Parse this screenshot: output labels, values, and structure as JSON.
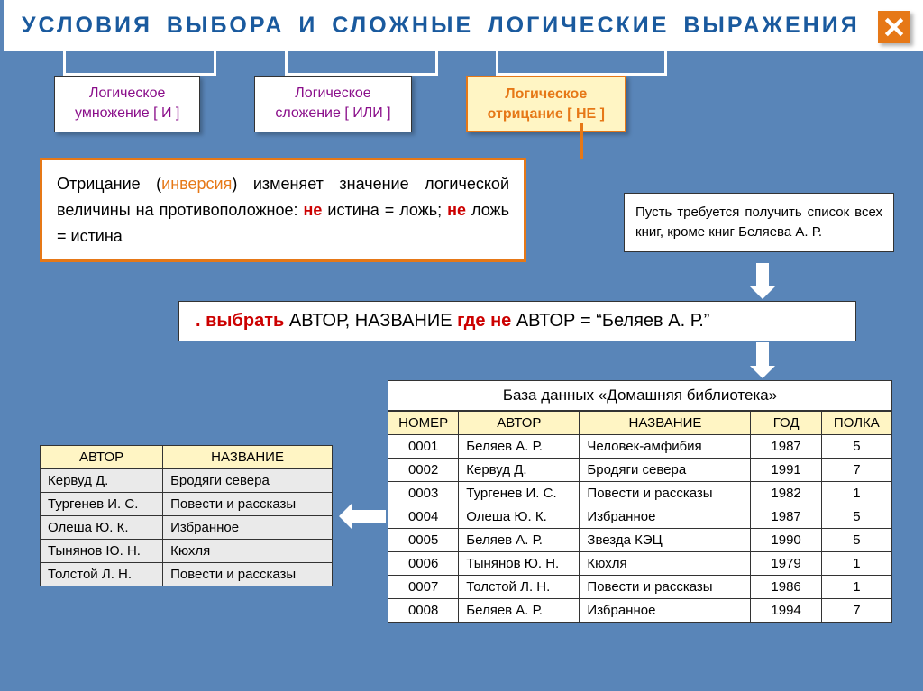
{
  "colors": {
    "background": "#5985b8",
    "title": "#1a5a9e",
    "accent_orange": "#e67817",
    "tab_text": "#8a0e8a",
    "query_red": "#c00",
    "header_bg": "#fff5c4",
    "white": "#ffffff",
    "alt_row": "#eaeaea"
  },
  "title": "УСЛОВИЯ  ВЫБОРА  И  СЛОЖНЫЕ  ЛОГИЧЕСКИЕ  ВЫРАЖЕНИЯ",
  "tabs": {
    "and": {
      "line1": "Логическое",
      "line2": "умножение  [ И ]"
    },
    "or": {
      "line1": "Логическое",
      "line2": "сложение  [ ИЛИ ]"
    },
    "not": {
      "line1": "Логическое",
      "line2": "отрицание   [ НЕ ]"
    }
  },
  "definition": {
    "p1a": "Отрицание (",
    "inv": "инверсия",
    "p1b": ") изменяет значение логической величины на противоположное: ",
    "ne1": "не",
    "p2": " истина = ложь; ",
    "ne2": "не",
    "p3": " ложь = истина"
  },
  "task": "Пусть требуется получить список всех книг, кроме книг Беляева А. Р.",
  "query": {
    "dot": ". ",
    "select": "выбрать",
    "fields": "  АВТОР, НАЗВАНИЕ  ",
    "where": "где",
    "sp1": "  ",
    "not": "не",
    "cond": "  АВТОР = “Беляев А. Р.”"
  },
  "big_table": {
    "caption": "База данных  «Домашняя библиотека»",
    "headers": [
      "НОМЕР",
      "АВТОР",
      "НАЗВАНИЕ",
      "ГОД",
      "ПОЛКА"
    ],
    "col_widths": [
      "14%",
      "24%",
      "34%",
      "14%",
      "14%"
    ],
    "rows": [
      [
        "0001",
        "Беляев А. Р.",
        "Человек-амфибия",
        "1987",
        "5"
      ],
      [
        "0002",
        "Кервуд Д.",
        "Бродяги севера",
        "1991",
        "7"
      ],
      [
        "0003",
        "Тургенев И. С.",
        "Повести и рассказы",
        "1982",
        "1"
      ],
      [
        "0004",
        "Олеша Ю. К.",
        "Избранное",
        "1987",
        "5"
      ],
      [
        "0005",
        "Беляев А. Р.",
        "Звезда КЭЦ",
        "1990",
        "5"
      ],
      [
        "0006",
        "Тынянов Ю. Н.",
        "Кюхля",
        "1979",
        "1"
      ],
      [
        "0007",
        "Толстой Л. Н.",
        "Повести и рассказы",
        "1986",
        "1"
      ],
      [
        "0008",
        "Беляев А. Р.",
        "Избранное",
        "1994",
        "7"
      ]
    ]
  },
  "small_table": {
    "headers": [
      "АВТОР",
      "НАЗВАНИЕ"
    ],
    "col_widths": [
      "42%",
      "58%"
    ],
    "rows": [
      [
        "Кервуд Д.",
        "Бродяги севера"
      ],
      [
        "Тургенев И. С.",
        "Повести и рассказы"
      ],
      [
        "Олеша Ю. К.",
        "Избранное"
      ],
      [
        "Тынянов Ю. Н.",
        "Кюхля"
      ],
      [
        "Толстой Л. Н.",
        "Повести и рассказы"
      ]
    ]
  }
}
